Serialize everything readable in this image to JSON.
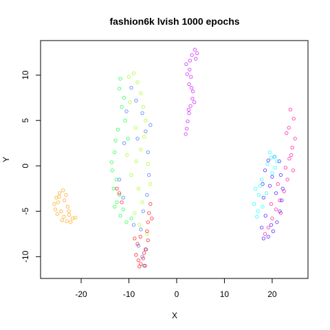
{
  "chart_data": {
    "type": "scatter",
    "title": "fashion6k lvish 1000 epochs",
    "xlabel": "X",
    "ylabel": "Y",
    "xlim": [
      -28.5,
      27.5
    ],
    "ylim": [
      -12.4,
      13.8
    ],
    "x_ticks": [
      -20,
      -10,
      0,
      10,
      20
    ],
    "x_tick_labels": [
      "-20",
      "-10",
      "0",
      "10",
      "20"
    ],
    "y_ticks": [
      -10,
      -5,
      0,
      5,
      10
    ],
    "y_tick_labels": [
      "-10",
      "-5",
      "0",
      "5",
      "10"
    ],
    "grid": false,
    "legend": "none",
    "marker": "open-circle",
    "series": [
      {
        "color": "#FF9900",
        "values": [
          {
            "x": -24.5,
            "y": -3.0
          },
          {
            "x": -23.8,
            "y": -2.7
          },
          {
            "x": -25.2,
            "y": -3.5
          },
          {
            "x": -25.6,
            "y": -4.2
          },
          {
            "x": -24.8,
            "y": -4.0
          },
          {
            "x": -23.5,
            "y": -3.8
          },
          {
            "x": -22.8,
            "y": -4.5
          },
          {
            "x": -24.2,
            "y": -5.0
          },
          {
            "x": -25.0,
            "y": -5.3
          },
          {
            "x": -23.6,
            "y": -5.6
          },
          {
            "x": -22.5,
            "y": -5.4
          },
          {
            "x": -21.8,
            "y": -5.8
          },
          {
            "x": -23.0,
            "y": -6.1
          },
          {
            "x": -24.0,
            "y": -6.0
          },
          {
            "x": -22.2,
            "y": -6.2
          },
          {
            "x": -25.4,
            "y": -4.8
          },
          {
            "x": -24.6,
            "y": -3.4
          },
          {
            "x": -23.2,
            "y": -3.2
          },
          {
            "x": -22.6,
            "y": -5.0
          },
          {
            "x": -21.2,
            "y": -5.7
          }
        ]
      },
      {
        "color": "#CC00FF",
        "values": [
          {
            "x": 3.8,
            "y": 12.8
          },
          {
            "x": 4.3,
            "y": 12.4
          },
          {
            "x": 3.2,
            "y": 12.2
          },
          {
            "x": 2.8,
            "y": 11.6
          },
          {
            "x": 2.0,
            "y": 11.2
          },
          {
            "x": 2.7,
            "y": 10.6
          },
          {
            "x": 3.0,
            "y": 9.8
          },
          {
            "x": 2.6,
            "y": 9.0
          },
          {
            "x": 3.4,
            "y": 8.2
          },
          {
            "x": 3.3,
            "y": 7.4
          },
          {
            "x": 2.9,
            "y": 6.6
          },
          {
            "x": 2.6,
            "y": 5.8
          },
          {
            "x": 2.3,
            "y": 4.9
          },
          {
            "x": 2.1,
            "y": 4.1
          },
          {
            "x": 1.9,
            "y": 3.5
          },
          {
            "x": 3.7,
            "y": 7.0
          },
          {
            "x": 2.5,
            "y": 6.2
          },
          {
            "x": 3.1,
            "y": 8.6
          },
          {
            "x": 2.2,
            "y": 10.1
          },
          {
            "x": 4.0,
            "y": 11.8
          }
        ]
      },
      {
        "color": "#00FF33",
        "values": [
          {
            "x": -12.0,
            "y": 8.5
          },
          {
            "x": -11.5,
            "y": 6.5
          },
          {
            "x": -12.3,
            "y": 4.0
          },
          {
            "x": -13.0,
            "y": 1.5
          },
          {
            "x": -13.5,
            "y": -0.5
          },
          {
            "x": -13.2,
            "y": -2.5
          },
          {
            "x": -12.5,
            "y": -4.0
          },
          {
            "x": -11.8,
            "y": -5.5
          },
          {
            "x": -10.5,
            "y": -6.2
          },
          {
            "x": -11.0,
            "y": 7.5
          },
          {
            "x": -12.8,
            "y": 2.8
          },
          {
            "x": -13.6,
            "y": 0.4
          },
          {
            "x": -12.0,
            "y": -3.2
          },
          {
            "x": -11.2,
            "y": -4.8
          },
          {
            "x": -9.5,
            "y": -5.8
          },
          {
            "x": -10.8,
            "y": 5.0
          },
          {
            "x": -11.8,
            "y": 9.6
          },
          {
            "x": -12.6,
            "y": -1.5
          },
          {
            "x": -10.2,
            "y": 3.0
          },
          {
            "x": -13.0,
            "y": -4.5
          }
        ]
      },
      {
        "color": "#99FF00",
        "values": [
          {
            "x": -10.0,
            "y": 9.8
          },
          {
            "x": -9.0,
            "y": 10.2
          },
          {
            "x": -8.2,
            "y": 9.2
          },
          {
            "x": -7.5,
            "y": 8.0
          },
          {
            "x": -7.0,
            "y": 6.5
          },
          {
            "x": -6.5,
            "y": 5.0
          },
          {
            "x": -6.8,
            "y": 3.2
          },
          {
            "x": -7.5,
            "y": 1.8
          },
          {
            "x": -8.5,
            "y": 0.5
          },
          {
            "x": -9.5,
            "y": -1.0
          },
          {
            "x": -8.0,
            "y": -2.5
          },
          {
            "x": -7.2,
            "y": -4.0
          },
          {
            "x": -8.8,
            "y": -5.2
          },
          {
            "x": -7.8,
            "y": -6.5
          },
          {
            "x": -6.2,
            "y": -7.5
          },
          {
            "x": -5.5,
            "y": -2.0
          },
          {
            "x": -6.0,
            "y": 0.2
          },
          {
            "x": -9.8,
            "y": 7.0
          },
          {
            "x": -8.6,
            "y": 4.2
          },
          {
            "x": -10.4,
            "y": 1.2
          }
        ]
      },
      {
        "color": "#3366FF",
        "values": [
          {
            "x": -9.5,
            "y": 8.6
          },
          {
            "x": -8.5,
            "y": 7.2
          },
          {
            "x": -7.2,
            "y": 5.8
          },
          {
            "x": -6.5,
            "y": 3.8
          },
          {
            "x": -6.0,
            "y": 1.5
          },
          {
            "x": -5.8,
            "y": -1.0
          },
          {
            "x": -6.2,
            "y": -3.2
          },
          {
            "x": -7.0,
            "y": -5.0
          },
          {
            "x": -7.5,
            "y": -7.0
          },
          {
            "x": -8.0,
            "y": -8.8
          },
          {
            "x": -7.2,
            "y": -10.0
          },
          {
            "x": -6.8,
            "y": -11.0
          },
          {
            "x": -10.5,
            "y": 6.0
          },
          {
            "x": -11.0,
            "y": 2.5
          },
          {
            "x": -12.0,
            "y": -1.5
          },
          {
            "x": -11.2,
            "y": -3.5
          },
          {
            "x": -5.5,
            "y": 4.5
          },
          {
            "x": -9.0,
            "y": -6.5
          },
          {
            "x": -8.2,
            "y": 3.0
          },
          {
            "x": -6.4,
            "y": -9.2
          }
        ]
      },
      {
        "color": "#FF0000",
        "values": [
          {
            "x": -5.5,
            "y": -4.2
          },
          {
            "x": -5.8,
            "y": -5.2
          },
          {
            "x": -6.0,
            "y": -6.2
          },
          {
            "x": -6.2,
            "y": -7.2
          },
          {
            "x": -6.0,
            "y": -8.2
          },
          {
            "x": -6.5,
            "y": -9.2
          },
          {
            "x": -7.0,
            "y": -10.2
          },
          {
            "x": -7.5,
            "y": -10.8
          },
          {
            "x": -8.0,
            "y": -10.4
          },
          {
            "x": -8.5,
            "y": -9.8
          },
          {
            "x": -8.2,
            "y": -8.6
          },
          {
            "x": -7.6,
            "y": -7.8
          },
          {
            "x": -8.8,
            "y": -8.0
          },
          {
            "x": -6.6,
            "y": -11.0
          },
          {
            "x": -12.0,
            "y": -3.0
          },
          {
            "x": -11.5,
            "y": -4.0
          },
          {
            "x": -12.5,
            "y": -2.5
          },
          {
            "x": -5.2,
            "y": -5.8
          },
          {
            "x": -6.8,
            "y": -9.6
          },
          {
            "x": -7.8,
            "y": -11.1
          }
        ]
      },
      {
        "color": "#FF0099",
        "values": [
          {
            "x": 23.8,
            "y": 6.2
          },
          {
            "x": 24.5,
            "y": 5.2
          },
          {
            "x": 23.5,
            "y": 4.2
          },
          {
            "x": 24.8,
            "y": 3.0
          },
          {
            "x": 24.2,
            "y": 2.0
          },
          {
            "x": 23.6,
            "y": 0.8
          },
          {
            "x": 24.4,
            "y": -0.5
          },
          {
            "x": 23.2,
            "y": -1.5
          },
          {
            "x": 22.5,
            "y": -2.8
          },
          {
            "x": 21.6,
            "y": -3.8
          },
          {
            "x": 20.8,
            "y": -4.8
          },
          {
            "x": 20.0,
            "y": -5.8
          },
          {
            "x": 19.2,
            "y": -6.8
          },
          {
            "x": 18.5,
            "y": -7.5
          },
          {
            "x": 22.8,
            "y": -0.2
          },
          {
            "x": 21.2,
            "y": -2.0
          },
          {
            "x": 24.0,
            "y": 1.2
          },
          {
            "x": 23.0,
            "y": 3.6
          },
          {
            "x": 19.8,
            "y": -4.2
          },
          {
            "x": 21.8,
            "y": -5.2
          }
        ]
      },
      {
        "color": "#3300FF",
        "values": [
          {
            "x": 18.2,
            "y": -8.0
          },
          {
            "x": 19.2,
            "y": -7.8
          },
          {
            "x": 20.2,
            "y": -7.2
          },
          {
            "x": 21.0,
            "y": -6.2
          },
          {
            "x": 21.6,
            "y": -5.0
          },
          {
            "x": 22.0,
            "y": -3.8
          },
          {
            "x": 22.2,
            "y": -2.5
          },
          {
            "x": 21.8,
            "y": -1.0
          },
          {
            "x": 21.5,
            "y": 0.5
          },
          {
            "x": 20.5,
            "y": 1.0
          },
          {
            "x": 19.2,
            "y": 0.6
          },
          {
            "x": 18.5,
            "y": -0.5
          },
          {
            "x": 18.0,
            "y": -2.0
          },
          {
            "x": 18.2,
            "y": -3.5
          },
          {
            "x": 18.6,
            "y": -5.5
          },
          {
            "x": 19.8,
            "y": -6.5
          },
          {
            "x": 20.8,
            "y": -3.0
          },
          {
            "x": 19.5,
            "y": -2.2
          },
          {
            "x": 17.8,
            "y": -6.8
          },
          {
            "x": 20.0,
            "y": -1.2
          }
        ]
      },
      {
        "color": "#00FFFF",
        "values": [
          {
            "x": 16.5,
            "y": -2.5
          },
          {
            "x": 17.2,
            "y": -3.2
          },
          {
            "x": 16.2,
            "y": -4.2
          },
          {
            "x": 17.0,
            "y": -5.0
          },
          {
            "x": 18.0,
            "y": -4.5
          },
          {
            "x": 17.5,
            "y": -2.2
          },
          {
            "x": 19.5,
            "y": 1.5
          },
          {
            "x": 20.5,
            "y": 1.0
          },
          {
            "x": 19.0,
            "y": 0.2
          },
          {
            "x": 21.0,
            "y": 0.5
          },
          {
            "x": 20.0,
            "y": -0.8
          },
          {
            "x": 17.8,
            "y": -1.5
          },
          {
            "x": 16.8,
            "y": -5.6
          },
          {
            "x": 18.8,
            "y": -3.0
          },
          {
            "x": 20.6,
            "y": -0.2
          },
          {
            "x": 19.8,
            "y": 0.9
          }
        ]
      }
    ]
  }
}
